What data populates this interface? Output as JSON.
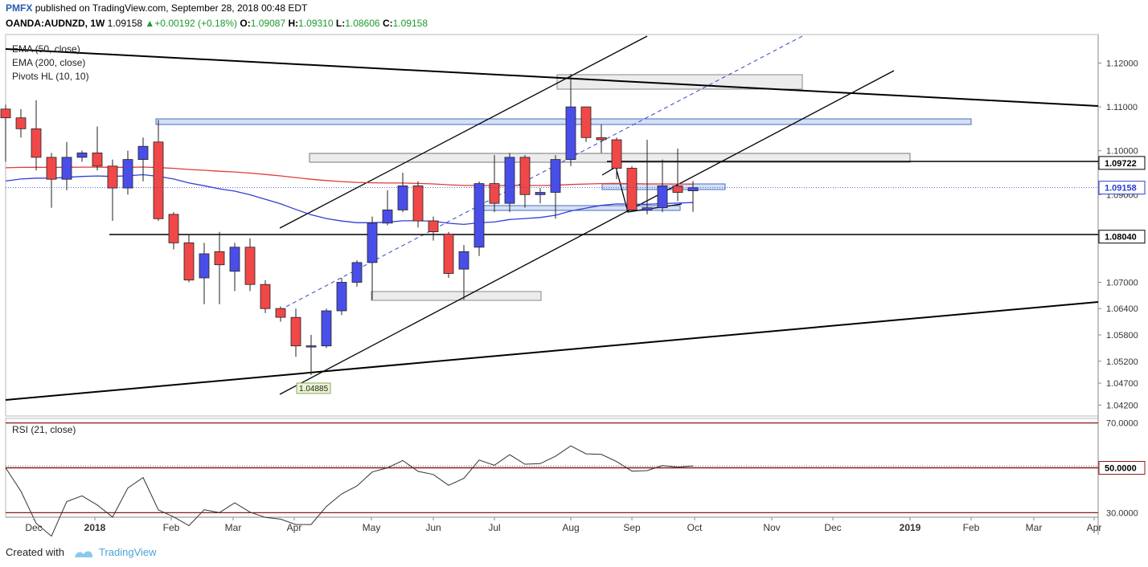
{
  "header": {
    "brand": "PMFX",
    "published": "published on TradingView.com, September 28, 2018 00:48 EDT",
    "symbol": "OANDA:AUDNZD, 1W",
    "last": "1.09158",
    "change": "+0.00192 (+0.18%)",
    "o_label": "O:",
    "o": "1.09087",
    "h_label": "H:",
    "h": "1.09310",
    "l_label": "L:",
    "l": "1.08606",
    "c_label": "C:",
    "c": "1.09158"
  },
  "footer": {
    "created_with": "Created with",
    "brand": "TradingView"
  },
  "colors": {
    "bull": "#4a4ee8",
    "bear": "#f04848",
    "ema50": "#2f3fd8",
    "ema200": "#e23a3a",
    "rsi_band": "#8b1a1a"
  },
  "chart_data": [
    {
      "type": "candlestick",
      "timeframe": "1W",
      "indicators": [
        "EMA (50, close)",
        "EMA (200, close)",
        "Pivots HL (10, 10)"
      ],
      "ylim": [
        1.0395,
        1.1265
      ],
      "y_ticks": [
        "1.12000",
        "1.11000",
        "1.10000",
        "1.09000",
        "1.07000",
        "1.06400",
        "1.05800",
        "1.05200",
        "1.04700",
        "1.04200"
      ],
      "x_ticks": [
        "Dec",
        "2018",
        "Feb",
        "Mar",
        "Apr",
        "May",
        "Jun",
        "Jul",
        "Aug",
        "Sep",
        "Oct",
        "Nov",
        "Dec",
        "2019",
        "Feb",
        "Mar",
        "Apr"
      ],
      "price_markers": [
        {
          "value": 1.09722,
          "label": "1.09722",
          "style": "black"
        },
        {
          "value": 1.09158,
          "label": "1.09158",
          "style": "blue"
        },
        {
          "value": 1.0804,
          "label": "1.08040",
          "style": "black"
        }
      ],
      "pivot_label": {
        "value": 1.04885,
        "text": "1.04885"
      },
      "candles": [
        {
          "o": 1.1095,
          "h": 1.1105,
          "l": 1.0975,
          "c": 1.1075
        },
        {
          "o": 1.1075,
          "h": 1.1095,
          "l": 1.103,
          "c": 1.105
        },
        {
          "o": 1.105,
          "h": 1.1115,
          "l": 1.0955,
          "c": 1.0985
        },
        {
          "o": 1.0985,
          "h": 1.0995,
          "l": 1.087,
          "c": 1.0935
        },
        {
          "o": 1.0935,
          "h": 1.102,
          "l": 1.091,
          "c": 1.0985
        },
        {
          "o": 1.0985,
          "h": 1.1,
          "l": 1.0975,
          "c": 1.0995
        },
        {
          "o": 1.0995,
          "h": 1.1055,
          "l": 1.0955,
          "c": 1.0965
        },
        {
          "o": 1.0965,
          "h": 1.098,
          "l": 1.084,
          "c": 1.0915
        },
        {
          "o": 1.0915,
          "h": 1.1,
          "l": 1.09,
          "c": 1.098
        },
        {
          "o": 1.098,
          "h": 1.103,
          "l": 1.093,
          "c": 1.101
        },
        {
          "o": 1.102,
          "h": 1.107,
          "l": 1.084,
          "c": 1.0845
        },
        {
          "o": 1.0855,
          "h": 1.086,
          "l": 1.0775,
          "c": 1.079
        },
        {
          "o": 1.079,
          "h": 1.081,
          "l": 1.07,
          "c": 1.0705
        },
        {
          "o": 1.071,
          "h": 1.079,
          "l": 1.065,
          "c": 1.0765
        },
        {
          "o": 1.077,
          "h": 1.0815,
          "l": 1.065,
          "c": 1.074
        },
        {
          "o": 1.0725,
          "h": 1.079,
          "l": 1.068,
          "c": 1.078
        },
        {
          "o": 1.078,
          "h": 1.08,
          "l": 1.068,
          "c": 1.0695
        },
        {
          "o": 1.0695,
          "h": 1.0705,
          "l": 1.063,
          "c": 1.064
        },
        {
          "o": 1.064,
          "h": 1.0645,
          "l": 1.061,
          "c": 1.062
        },
        {
          "o": 1.062,
          "h": 1.064,
          "l": 1.053,
          "c": 1.0555
        },
        {
          "o": 1.0555,
          "h": 1.058,
          "l": 1.04885,
          "c": 1.0555
        },
        {
          "o": 1.0555,
          "h": 1.064,
          "l": 1.055,
          "c": 1.0635
        },
        {
          "o": 1.0635,
          "h": 1.071,
          "l": 1.0625,
          "c": 1.07
        },
        {
          "o": 1.07,
          "h": 1.075,
          "l": 1.069,
          "c": 1.0745
        },
        {
          "o": 1.0745,
          "h": 1.085,
          "l": 1.066,
          "c": 1.0835
        },
        {
          "o": 1.0835,
          "h": 1.091,
          "l": 1.083,
          "c": 1.0865
        },
        {
          "o": 1.0865,
          "h": 1.095,
          "l": 1.086,
          "c": 1.092
        },
        {
          "o": 1.092,
          "h": 1.093,
          "l": 1.0825,
          "c": 1.084
        },
        {
          "o": 1.084,
          "h": 1.085,
          "l": 1.0795,
          "c": 1.0815
        },
        {
          "o": 1.081,
          "h": 1.0815,
          "l": 1.071,
          "c": 1.072
        },
        {
          "o": 1.073,
          "h": 1.0785,
          "l": 1.066,
          "c": 1.077
        },
        {
          "o": 1.078,
          "h": 1.093,
          "l": 1.076,
          "c": 1.0925
        },
        {
          "o": 1.0925,
          "h": 1.099,
          "l": 1.086,
          "c": 1.088
        },
        {
          "o": 1.088,
          "h": 1.0995,
          "l": 1.086,
          "c": 1.0985
        },
        {
          "o": 1.0985,
          "h": 1.099,
          "l": 1.087,
          "c": 1.09
        },
        {
          "o": 1.09,
          "h": 1.0915,
          "l": 1.088,
          "c": 1.0905
        },
        {
          "o": 1.0905,
          "h": 1.099,
          "l": 1.0845,
          "c": 1.098
        },
        {
          "o": 1.098,
          "h": 1.1175,
          "l": 1.0965,
          "c": 1.11
        },
        {
          "o": 1.11,
          "h": 1.11,
          "l": 1.102,
          "c": 1.103
        },
        {
          "o": 1.103,
          "h": 1.106,
          "l": 1.0995,
          "c": 1.1025
        },
        {
          "o": 1.1025,
          "h": 1.103,
          "l": 1.0935,
          "c": 1.096
        },
        {
          "o": 1.096,
          "h": 1.0965,
          "l": 1.086,
          "c": 1.0865
        },
        {
          "o": 1.0865,
          "h": 1.1025,
          "l": 1.0855,
          "c": 1.087
        },
        {
          "o": 1.087,
          "h": 1.098,
          "l": 1.086,
          "c": 1.092
        },
        {
          "o": 1.092,
          "h": 1.1005,
          "l": 1.0885,
          "c": 1.0905
        },
        {
          "o": 1.09087,
          "h": 1.0931,
          "l": 1.08606,
          "c": 1.09158
        }
      ]
    },
    {
      "type": "line",
      "title": "RSI (21, close)",
      "ylim": [
        28,
        72
      ],
      "y_ticks": [
        "70.0000",
        "30.0000"
      ],
      "level_marker": "50.0000",
      "levels": [
        70,
        30
      ]
    }
  ]
}
